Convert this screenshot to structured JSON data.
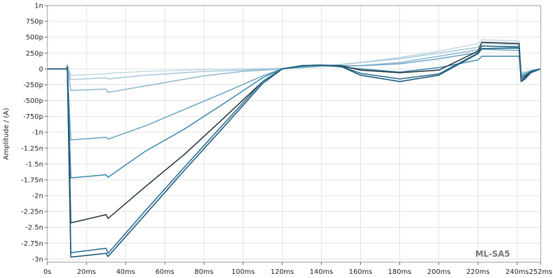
{
  "chart_data": {
    "type": "line",
    "title": "",
    "xlabel": "",
    "ylabel": "Amplitude / (A)",
    "annotation": "ML-SA5",
    "grid": true,
    "legend": "none",
    "xlim": [
      0,
      252
    ],
    "ylim": [
      -3.05,
      1.0
    ],
    "x_ticks": [
      {
        "value": 0,
        "label": "0s"
      },
      {
        "value": 20,
        "label": "20ms"
      },
      {
        "value": 40,
        "label": "40ms"
      },
      {
        "value": 60,
        "label": "60ms"
      },
      {
        "value": 80,
        "label": "80ms"
      },
      {
        "value": 100,
        "label": "100ms"
      },
      {
        "value": 120,
        "label": "120ms"
      },
      {
        "value": 140,
        "label": "140ms"
      },
      {
        "value": 160,
        "label": "160ms"
      },
      {
        "value": 180,
        "label": "180ms"
      },
      {
        "value": 200,
        "label": "200ms"
      },
      {
        "value": 220,
        "label": "220ms"
      },
      {
        "value": 240,
        "label": "240ms"
      },
      {
        "value": 252,
        "label": "252ms"
      }
    ],
    "y_ticks": [
      {
        "value": 1.0,
        "label": "1n"
      },
      {
        "value": 0.75,
        "label": "750p"
      },
      {
        "value": 0.5,
        "label": "500p"
      },
      {
        "value": 0.25,
        "label": "250p"
      },
      {
        "value": 0,
        "label": "0"
      },
      {
        "value": -0.25,
        "label": "-250p"
      },
      {
        "value": -0.5,
        "label": "-500p"
      },
      {
        "value": -0.75,
        "label": "-750p"
      },
      {
        "value": -1.0,
        "label": "-1n"
      },
      {
        "value": -1.25,
        "label": "-1.25n"
      },
      {
        "value": -1.5,
        "label": "-1.5n"
      },
      {
        "value": -1.75,
        "label": "-1.75n"
      },
      {
        "value": -2.0,
        "label": "-2n"
      },
      {
        "value": -2.25,
        "label": "-2.25n"
      },
      {
        "value": -2.5,
        "label": "-2.5n"
      },
      {
        "value": -2.75,
        "label": "-2.75n"
      },
      {
        "value": -3.0,
        "label": "-3n"
      }
    ],
    "series": [
      {
        "color": "#c3d8e4",
        "x": [
          0,
          9.8,
          10.2,
          12,
          30,
          31,
          50,
          80,
          100,
          120,
          140,
          160,
          180,
          200,
          220,
          222,
          241,
          242,
          244,
          247,
          252
        ],
        "y": [
          0,
          0,
          0.08,
          -0.1,
          -0.08,
          -0.07,
          -0.04,
          -0.01,
          0,
          0.01,
          0.04,
          0.1,
          0.18,
          0.28,
          0.4,
          0.46,
          0.44,
          -0.05,
          -0.05,
          -0.02,
          0
        ]
      },
      {
        "color": "#a9c9db",
        "x": [
          0,
          9.8,
          10.2,
          12,
          30,
          31,
          50,
          80,
          100,
          120,
          140,
          160,
          180,
          200,
          220,
          222,
          241,
          242,
          244,
          247,
          252
        ],
        "y": [
          0,
          0,
          0.06,
          -0.17,
          -0.14,
          -0.16,
          -0.1,
          -0.04,
          -0.02,
          0,
          0.04,
          0.1,
          0.16,
          0.25,
          0.34,
          0.41,
          0.38,
          -0.05,
          -0.06,
          -0.03,
          0
        ]
      },
      {
        "color": "#91b9cf",
        "x": [
          0,
          9.8,
          10.2,
          12,
          30,
          31,
          50,
          80,
          100,
          120,
          140,
          160,
          180,
          200,
          220,
          222,
          241,
          242,
          244,
          247,
          252
        ],
        "y": [
          0,
          0,
          0.05,
          -0.34,
          -0.32,
          -0.37,
          -0.27,
          -0.11,
          -0.04,
          0,
          0.04,
          0.05,
          0.1,
          0.2,
          0.3,
          0.36,
          0.34,
          -0.08,
          -0.07,
          -0.03,
          0
        ]
      },
      {
        "color": "#6ea8c5",
        "x": [
          0,
          9.8,
          10.2,
          12,
          30,
          31,
          50,
          70,
          90,
          110,
          120,
          130,
          140,
          160,
          180,
          200,
          220,
          222,
          241,
          242,
          244,
          247,
          252
        ],
        "y": [
          0,
          0,
          0.04,
          -1.12,
          -1.08,
          -1.11,
          -0.9,
          -0.64,
          -0.38,
          -0.11,
          0,
          0.03,
          0.05,
          0.05,
          0.08,
          0.16,
          0.26,
          0.31,
          0.29,
          -0.1,
          -0.08,
          -0.03,
          0
        ]
      },
      {
        "color": "#3f8bb0",
        "x": [
          0,
          9.8,
          10.2,
          12,
          30,
          31,
          50,
          70,
          90,
          110,
          120,
          130,
          140,
          160,
          180,
          200,
          220,
          222,
          241,
          242,
          244,
          247,
          252
        ],
        "y": [
          0,
          0,
          0.03,
          -1.72,
          -1.67,
          -1.71,
          -1.3,
          -0.95,
          -0.55,
          -0.14,
          0,
          0.04,
          0.06,
          0,
          -0.05,
          0.02,
          0.14,
          0.2,
          0.2,
          -0.12,
          -0.1,
          -0.04,
          0
        ]
      },
      {
        "color": "#2a3a44",
        "x": [
          0,
          9.8,
          10.2,
          12,
          30,
          31,
          50,
          70,
          90,
          110,
          120,
          130,
          140,
          150,
          160,
          180,
          200,
          220,
          222,
          241,
          242,
          244,
          247,
          252
        ],
        "y": [
          0,
          0,
          0.03,
          -2.43,
          -2.3,
          -2.36,
          -1.86,
          -1.35,
          -0.78,
          -0.2,
          0,
          0.05,
          0.06,
          0.05,
          -0.02,
          -0.06,
          -0.02,
          0.28,
          0.42,
          0.4,
          -0.15,
          -0.12,
          -0.05,
          0
        ]
      },
      {
        "color": "#2a6f92",
        "x": [
          0,
          9.8,
          10.2,
          12,
          30,
          31,
          50,
          70,
          90,
          110,
          120,
          130,
          140,
          150,
          160,
          180,
          200,
          220,
          222,
          241,
          242,
          244,
          247,
          252
        ],
        "y": [
          0,
          0,
          0.02,
          -2.9,
          -2.83,
          -2.91,
          -2.24,
          -1.55,
          -0.87,
          -0.2,
          0,
          0.05,
          0.06,
          0.04,
          -0.07,
          -0.16,
          -0.08,
          0.25,
          0.36,
          0.35,
          -0.18,
          -0.14,
          -0.06,
          0
        ]
      },
      {
        "color": "#1d5a78",
        "x": [
          0,
          9.8,
          10.2,
          12,
          30,
          31,
          50,
          70,
          90,
          110,
          120,
          130,
          140,
          150,
          160,
          180,
          200,
          220,
          222,
          241,
          242,
          244,
          247,
          252
        ],
        "y": [
          0,
          0,
          0.02,
          -2.97,
          -2.91,
          -2.96,
          -2.3,
          -1.6,
          -0.92,
          -0.23,
          0,
          0.05,
          0.06,
          0.04,
          -0.1,
          -0.2,
          -0.1,
          0.24,
          0.32,
          0.33,
          -0.2,
          -0.16,
          -0.06,
          0
        ]
      }
    ]
  }
}
